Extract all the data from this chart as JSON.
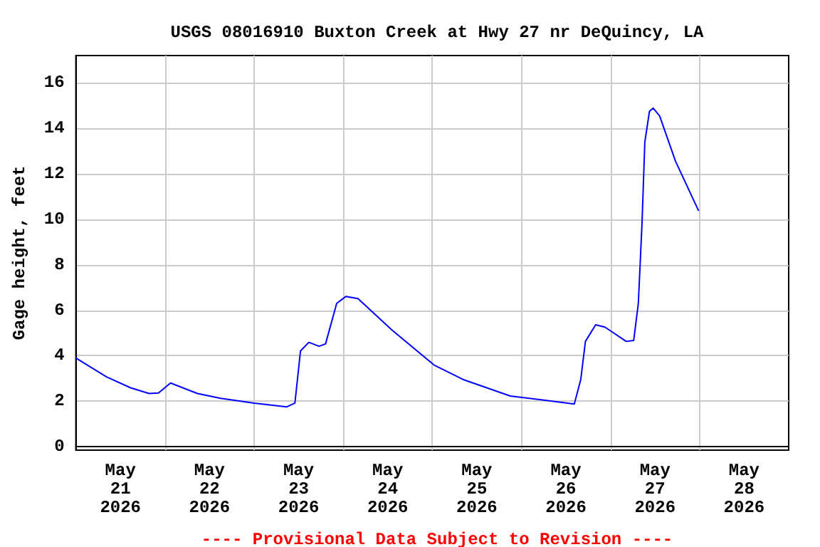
{
  "chart_data": {
    "type": "line",
    "title": "USGS 08016910 Buxton Creek at Hwy 27 nr DeQuincy, LA",
    "ylabel": "Gage height, feet",
    "annotations": [
      "---- Provisional Data Subject to Revision ----"
    ],
    "x": [
      "2026-05-21T00:00",
      "2026-05-21T08:15",
      "2026-05-21T14:45",
      "2026-05-21T19:45",
      "2026-05-21T22:15",
      "2026-05-22T01:30",
      "2026-05-22T08:45",
      "2026-05-22T15:00",
      "2026-05-23T00:00",
      "2026-05-23T08:45",
      "2026-05-23T11:00",
      "2026-05-23T12:30",
      "2026-05-23T14:45",
      "2026-05-23T17:30",
      "2026-05-23T19:15",
      "2026-05-23T22:15",
      "2026-05-24T00:45",
      "2026-05-24T04:00",
      "2026-05-24T13:00",
      "2026-05-25T00:30",
      "2026-05-25T08:15",
      "2026-05-25T21:00",
      "2026-05-26T14:15",
      "2026-05-26T16:00",
      "2026-05-26T17:15",
      "2026-05-26T20:00",
      "2026-05-26T22:30",
      "2026-05-27T04:15",
      "2026-05-27T06:15",
      "2026-05-27T07:30",
      "2026-05-27T08:30",
      "2026-05-27T09:15",
      "2026-05-27T10:30",
      "2026-05-27T11:30",
      "2026-05-27T13:15",
      "2026-05-27T17:30",
      "2026-05-27T23:45"
    ],
    "series": [
      {
        "color": "#0000ff",
        "values": [
          3.9,
          3.07,
          2.59,
          2.34,
          2.36,
          2.8,
          2.34,
          2.13,
          1.92,
          1.75,
          1.92,
          4.21,
          4.59,
          4.42,
          4.52,
          6.3,
          6.61,
          6.51,
          5.15,
          3.59,
          2.96,
          2.23,
          1.88,
          2.96,
          4.63,
          5.36,
          5.26,
          4.63,
          4.67,
          6.3,
          9.84,
          13.39,
          14.75,
          14.89,
          14.54,
          12.56,
          10.37
        ]
      }
    ],
    "xlim": [
      "2026-05-21",
      "2026-05-29"
    ],
    "xticks": [
      {
        "value": "2026-05-21T12:00",
        "label": "May\n21\n2026"
      },
      {
        "value": "2026-05-22",
        "label": null
      },
      {
        "value": "2026-05-22T12:00",
        "label": "May\n22\n2026"
      },
      {
        "value": "2026-05-23",
        "label": null
      },
      {
        "value": "2026-05-23T12:00",
        "label": "May\n23\n2026"
      },
      {
        "value": "2026-05-24",
        "label": null
      },
      {
        "value": "2026-05-24T12:00",
        "label": "May\n24\n2026"
      },
      {
        "value": "2026-05-25",
        "label": null
      },
      {
        "value": "2026-05-25T12:00",
        "label": "May\n25\n2026"
      },
      {
        "value": "2026-05-26",
        "label": null
      },
      {
        "value": "2026-05-26T12:00",
        "label": "May\n26\n2026"
      },
      {
        "value": "2026-05-27",
        "label": null
      },
      {
        "value": "2026-05-27T12:00",
        "label": "May\n27\n2026"
      },
      {
        "value": "2026-05-28",
        "label": null
      },
      {
        "value": "2026-05-28T12:00",
        "label": "May\n28\n2026"
      }
    ],
    "ylim": [
      -0.15,
      17.2
    ],
    "yticks": [
      0,
      2,
      4,
      6,
      8,
      10,
      12,
      14,
      16
    ],
    "grid": true,
    "marker": "none",
    "line_style": "solid"
  }
}
